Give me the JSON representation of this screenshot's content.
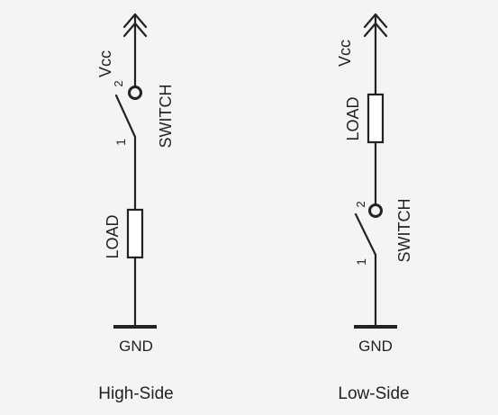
{
  "high_side": {
    "caption": "High-Side",
    "vcc": "Vcc",
    "gnd": "GND",
    "switch": {
      "label": "SWITCH",
      "pin1": "1",
      "pin2": "2"
    },
    "load": {
      "label": "LOAD"
    }
  },
  "low_side": {
    "caption": "Low-Side",
    "vcc": "Vcc",
    "gnd": "GND",
    "switch": {
      "label": "SWITCH",
      "pin1": "1",
      "pin2": "2"
    },
    "load": {
      "label": "LOAD"
    }
  }
}
